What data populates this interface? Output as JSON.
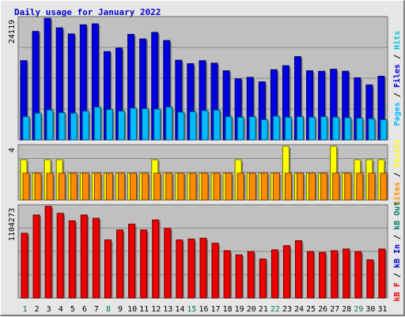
{
  "title": "Daily usage for January 2022",
  "colors": {
    "hits": "#00c8d8",
    "files": "#0000e0",
    "pages": "#00bbff",
    "visits": "#ffff00",
    "sites": "#ff8c00",
    "kb_out": "#008060",
    "kb_in": "#0000d0",
    "kb_f": "#ee0000",
    "weekday_tick": "#007a4a",
    "weekend_tick": "#000000",
    "panel_bg": "#c0c0c0",
    "grid": "#8a8a8a"
  },
  "right_labels": {
    "top": [
      {
        "text": "Pages",
        "color_key": "pages"
      },
      {
        "text": " / ",
        "color_key": "weekend_tick"
      },
      {
        "text": "Files",
        "color_key": "files"
      },
      {
        "text": " / ",
        "color_key": "weekend_tick"
      },
      {
        "text": "Hits",
        "color_key": "hits"
      }
    ],
    "middle": [
      {
        "text": "Sites",
        "color_key": "sites"
      },
      {
        "text": " / ",
        "color_key": "weekend_tick"
      },
      {
        "text": "Visits",
        "color_key": "visits"
      }
    ],
    "bottom": [
      {
        "text": "kB F",
        "color_key": "kb_f"
      },
      {
        "text": " / ",
        "color_key": "weekend_tick"
      },
      {
        "text": "kB In",
        "color_key": "kb_in"
      },
      {
        "text": " / ",
        "color_key": "weekend_tick"
      },
      {
        "text": "kB Out",
        "color_key": "kb_out"
      }
    ]
  },
  "chart_data": [
    {
      "type": "bar",
      "panel": "hits_files_pages",
      "ymax_label": "24119",
      "ylim": [
        0,
        24119
      ],
      "categories": [
        "1",
        "2",
        "3",
        "4",
        "5",
        "6",
        "7",
        "8",
        "9",
        "10",
        "11",
        "12",
        "13",
        "14",
        "15",
        "16",
        "17",
        "18",
        "19",
        "20",
        "21",
        "22",
        "23",
        "24",
        "25",
        "26",
        "27",
        "28",
        "29",
        "30",
        "31"
      ],
      "series": [
        {
          "name": "Hits",
          "color_key": "hits",
          "values": [
            15700,
            21500,
            24100,
            22200,
            21000,
            22800,
            23000,
            17500,
            18200,
            20900,
            20000,
            21300,
            19700,
            15800,
            15100,
            15700,
            15200,
            13700,
            12100,
            12400,
            11500,
            13900,
            14700,
            16500,
            13700,
            13600,
            14000,
            13600,
            12300,
            10900,
            12600
          ]
        },
        {
          "name": "Files",
          "color_key": "files",
          "values": [
            15700,
            21500,
            24100,
            22200,
            21000,
            22800,
            23000,
            17500,
            18200,
            20900,
            20000,
            21300,
            19700,
            15800,
            15100,
            15700,
            15200,
            13700,
            12100,
            12400,
            11500,
            13900,
            14700,
            16500,
            13700,
            13600,
            14000,
            13600,
            12300,
            10900,
            12600
          ]
        },
        {
          "name": "Pages",
          "color_key": "pages",
          "values": [
            4600,
            5300,
            5900,
            5400,
            5300,
            5700,
            6500,
            6000,
            5700,
            6300,
            6200,
            6100,
            6500,
            5500,
            5600,
            5800,
            5900,
            4600,
            4500,
            4600,
            4000,
            4700,
            4500,
            4600,
            4500,
            4600,
            4500,
            4400,
            4300,
            4200,
            4000
          ]
        }
      ]
    },
    {
      "type": "bar",
      "panel": "visits_sites",
      "ymax_label": "4",
      "ylim": [
        0,
        4
      ],
      "categories": [
        "1",
        "2",
        "3",
        "4",
        "5",
        "6",
        "7",
        "8",
        "9",
        "10",
        "11",
        "12",
        "13",
        "14",
        "15",
        "16",
        "17",
        "18",
        "19",
        "20",
        "21",
        "22",
        "23",
        "24",
        "25",
        "26",
        "27",
        "28",
        "29",
        "30",
        "31"
      ],
      "series": [
        {
          "name": "Visits",
          "color_key": "visits",
          "values": [
            3,
            2,
            3,
            3,
            2,
            2,
            2,
            2,
            2,
            2,
            2,
            3,
            2,
            2,
            2,
            2,
            2,
            2,
            3,
            2,
            2,
            2,
            4,
            2,
            2,
            2,
            4,
            2,
            3,
            3,
            3
          ]
        },
        {
          "name": "Sites",
          "color_key": "sites",
          "values": [
            2,
            2,
            2,
            2,
            2,
            2,
            2,
            2,
            2,
            2,
            2,
            2,
            2,
            2,
            2,
            2,
            2,
            2,
            2,
            2,
            2,
            2,
            2,
            2,
            2,
            2,
            2,
            2,
            2,
            2,
            2
          ]
        }
      ]
    },
    {
      "type": "bar",
      "panel": "kbytes",
      "ymax_label": "1104273",
      "ylim": [
        0,
        1104273
      ],
      "categories": [
        "1",
        "2",
        "3",
        "4",
        "5",
        "6",
        "7",
        "8",
        "9",
        "10",
        "11",
        "12",
        "13",
        "14",
        "15",
        "16",
        "17",
        "18",
        "19",
        "20",
        "21",
        "22",
        "23",
        "24",
        "25",
        "26",
        "27",
        "28",
        "29",
        "30",
        "31"
      ],
      "series": [
        {
          "name": "kB F",
          "color_key": "kb_f",
          "values": [
            780000,
            1000000,
            1104273,
            1020000,
            930000,
            1000000,
            960000,
            700000,
            820000,
            890000,
            820000,
            940000,
            840000,
            700000,
            710000,
            720000,
            660000,
            570000,
            520000,
            560000,
            470000,
            580000,
            630000,
            690000,
            560000,
            550000,
            570000,
            590000,
            560000,
            460000,
            590000
          ]
        }
      ]
    }
  ],
  "tick_weekend_days": [
    1,
    8,
    15,
    22,
    29
  ]
}
